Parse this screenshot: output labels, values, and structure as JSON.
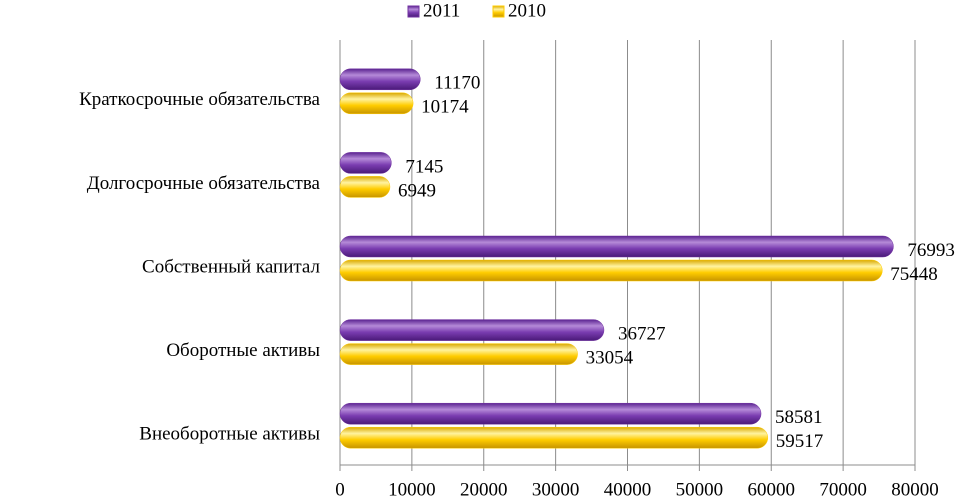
{
  "chart_data": {
    "type": "bar",
    "orientation": "horizontal",
    "categories": [
      "Краткосрочные обязательства",
      "Долгосрочные обязательства",
      "Собственный капитал",
      "Оборотные активы",
      "Внеоборотные активы"
    ],
    "series": [
      {
        "name": "2011",
        "color": "#7030a0",
        "values": [
          11170,
          7145,
          76993,
          36727,
          58581
        ]
      },
      {
        "name": "2010",
        "color": "#ffcc00",
        "values": [
          10174,
          6949,
          75448,
          33054,
          59517
        ]
      }
    ],
    "xlim": [
      0,
      80000
    ],
    "xticks": [
      0,
      10000,
      20000,
      30000,
      40000,
      50000,
      60000,
      70000,
      80000
    ],
    "grid": true,
    "legend": "top"
  }
}
